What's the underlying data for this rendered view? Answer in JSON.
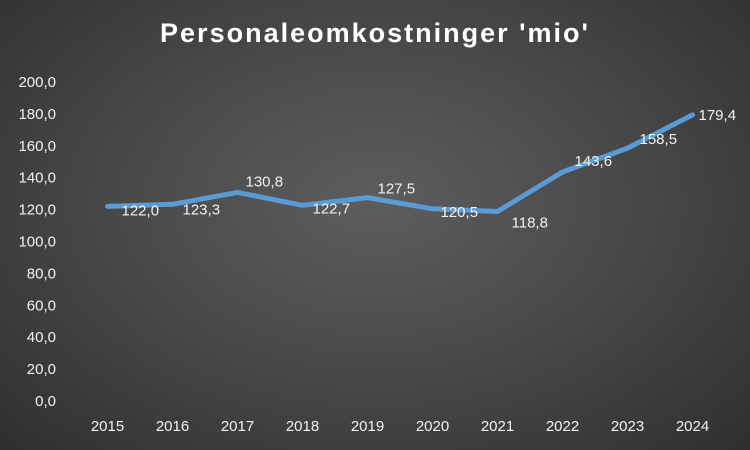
{
  "chart_data": {
    "type": "line",
    "title": "Personaleomkostninger 'mio'",
    "categories": [
      "2015",
      "2016",
      "2017",
      "2018",
      "2019",
      "2020",
      "2021",
      "2022",
      "2023",
      "2024"
    ],
    "series": [
      {
        "values": [
          122.0,
          123.3,
          130.8,
          122.7,
          127.5,
          120.5,
          118.8,
          143.6,
          158.5,
          179.4
        ],
        "labels": [
          "122,0",
          "123,3",
          "130,8",
          "122,7",
          "127,5",
          "120,5",
          "118,8",
          "143,6",
          "158,5",
          "179,4"
        ],
        "color": "#5b9bd5"
      }
    ],
    "ylim": [
      0,
      200
    ],
    "yticks": [
      0,
      20,
      40,
      60,
      80,
      100,
      120,
      140,
      160,
      180,
      200
    ],
    "ytick_labels": [
      "0,0",
      "20,0",
      "40,0",
      "60,0",
      "80,0",
      "100,0",
      "120,0",
      "140,0",
      "160,0",
      "180,0",
      "200,0"
    ],
    "grid": false,
    "legend": "none"
  }
}
